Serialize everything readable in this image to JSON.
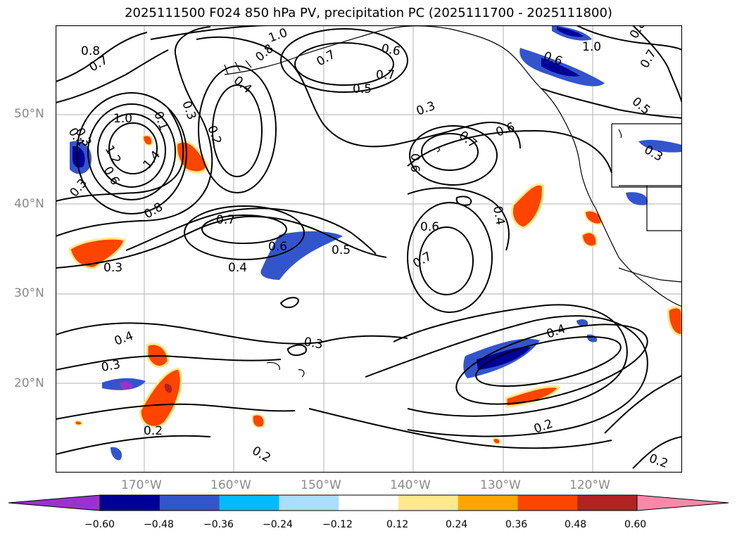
{
  "title": "2025111500 F024 850 hPa PV, precipitation PC (2025111700 - 2025111800)",
  "lat_labels": [
    "50°N",
    "40°N",
    "30°N",
    "20°N"
  ],
  "lon_labels": [
    "170°W",
    "160°W",
    "150°W",
    "140°W",
    "130°W",
    "120°W"
  ],
  "contour_labels": [
    {
      "t": "0.8"
    },
    {
      "t": "0.7"
    },
    {
      "t": "1.0"
    },
    {
      "t": "0.8"
    },
    {
      "t": "0.4"
    },
    {
      "t": "0.7"
    },
    {
      "t": "0.6"
    },
    {
      "t": "0.7"
    },
    {
      "t": "0.5"
    },
    {
      "t": "0.6"
    },
    {
      "t": "1.0"
    },
    {
      "t": "0.7"
    },
    {
      "t": "0.8"
    },
    {
      "t": "0.5"
    },
    {
      "t": "0.3"
    },
    {
      "t": "0.2"
    },
    {
      "t": "1.0"
    },
    {
      "t": "0.4"
    },
    {
      "t": "0.3"
    },
    {
      "t": "0.1"
    },
    {
      "t": "1.4"
    },
    {
      "t": "1.2"
    },
    {
      "t": "0.6"
    },
    {
      "t": "0.3"
    },
    {
      "t": "0.8"
    },
    {
      "t": "0.3"
    },
    {
      "t": "0.7"
    },
    {
      "t": "0.6"
    },
    {
      "t": "0.6"
    },
    {
      "t": "0.7"
    },
    {
      "t": "0.6"
    },
    {
      "t": "0.4"
    },
    {
      "t": "0.7"
    },
    {
      "t": "0.6"
    },
    {
      "t": "0.5"
    },
    {
      "t": "0.4"
    },
    {
      "t": "0.3"
    },
    {
      "t": "0.4"
    },
    {
      "t": "0.3"
    },
    {
      "t": "0.3"
    },
    {
      "t": "0.4"
    },
    {
      "t": "0.2"
    },
    {
      "t": "0.2"
    },
    {
      "t": "0.2"
    },
    {
      "t": "0.2"
    },
    {
      "t": "0.3"
    }
  ],
  "colorbar": {
    "colors": [
      "#9933cc",
      "#000099",
      "#3355cc",
      "#00bbff",
      "#aaddff",
      "#ffffff",
      "#ffe98a",
      "#ffa500",
      "#ff4400",
      "#b22222",
      "#ff88aa"
    ],
    "ticks": [
      "−0.60",
      "−0.48",
      "−0.36",
      "−0.24",
      "−0.12",
      "0.12",
      "0.24",
      "0.36",
      "0.48",
      "0.60"
    ]
  }
}
